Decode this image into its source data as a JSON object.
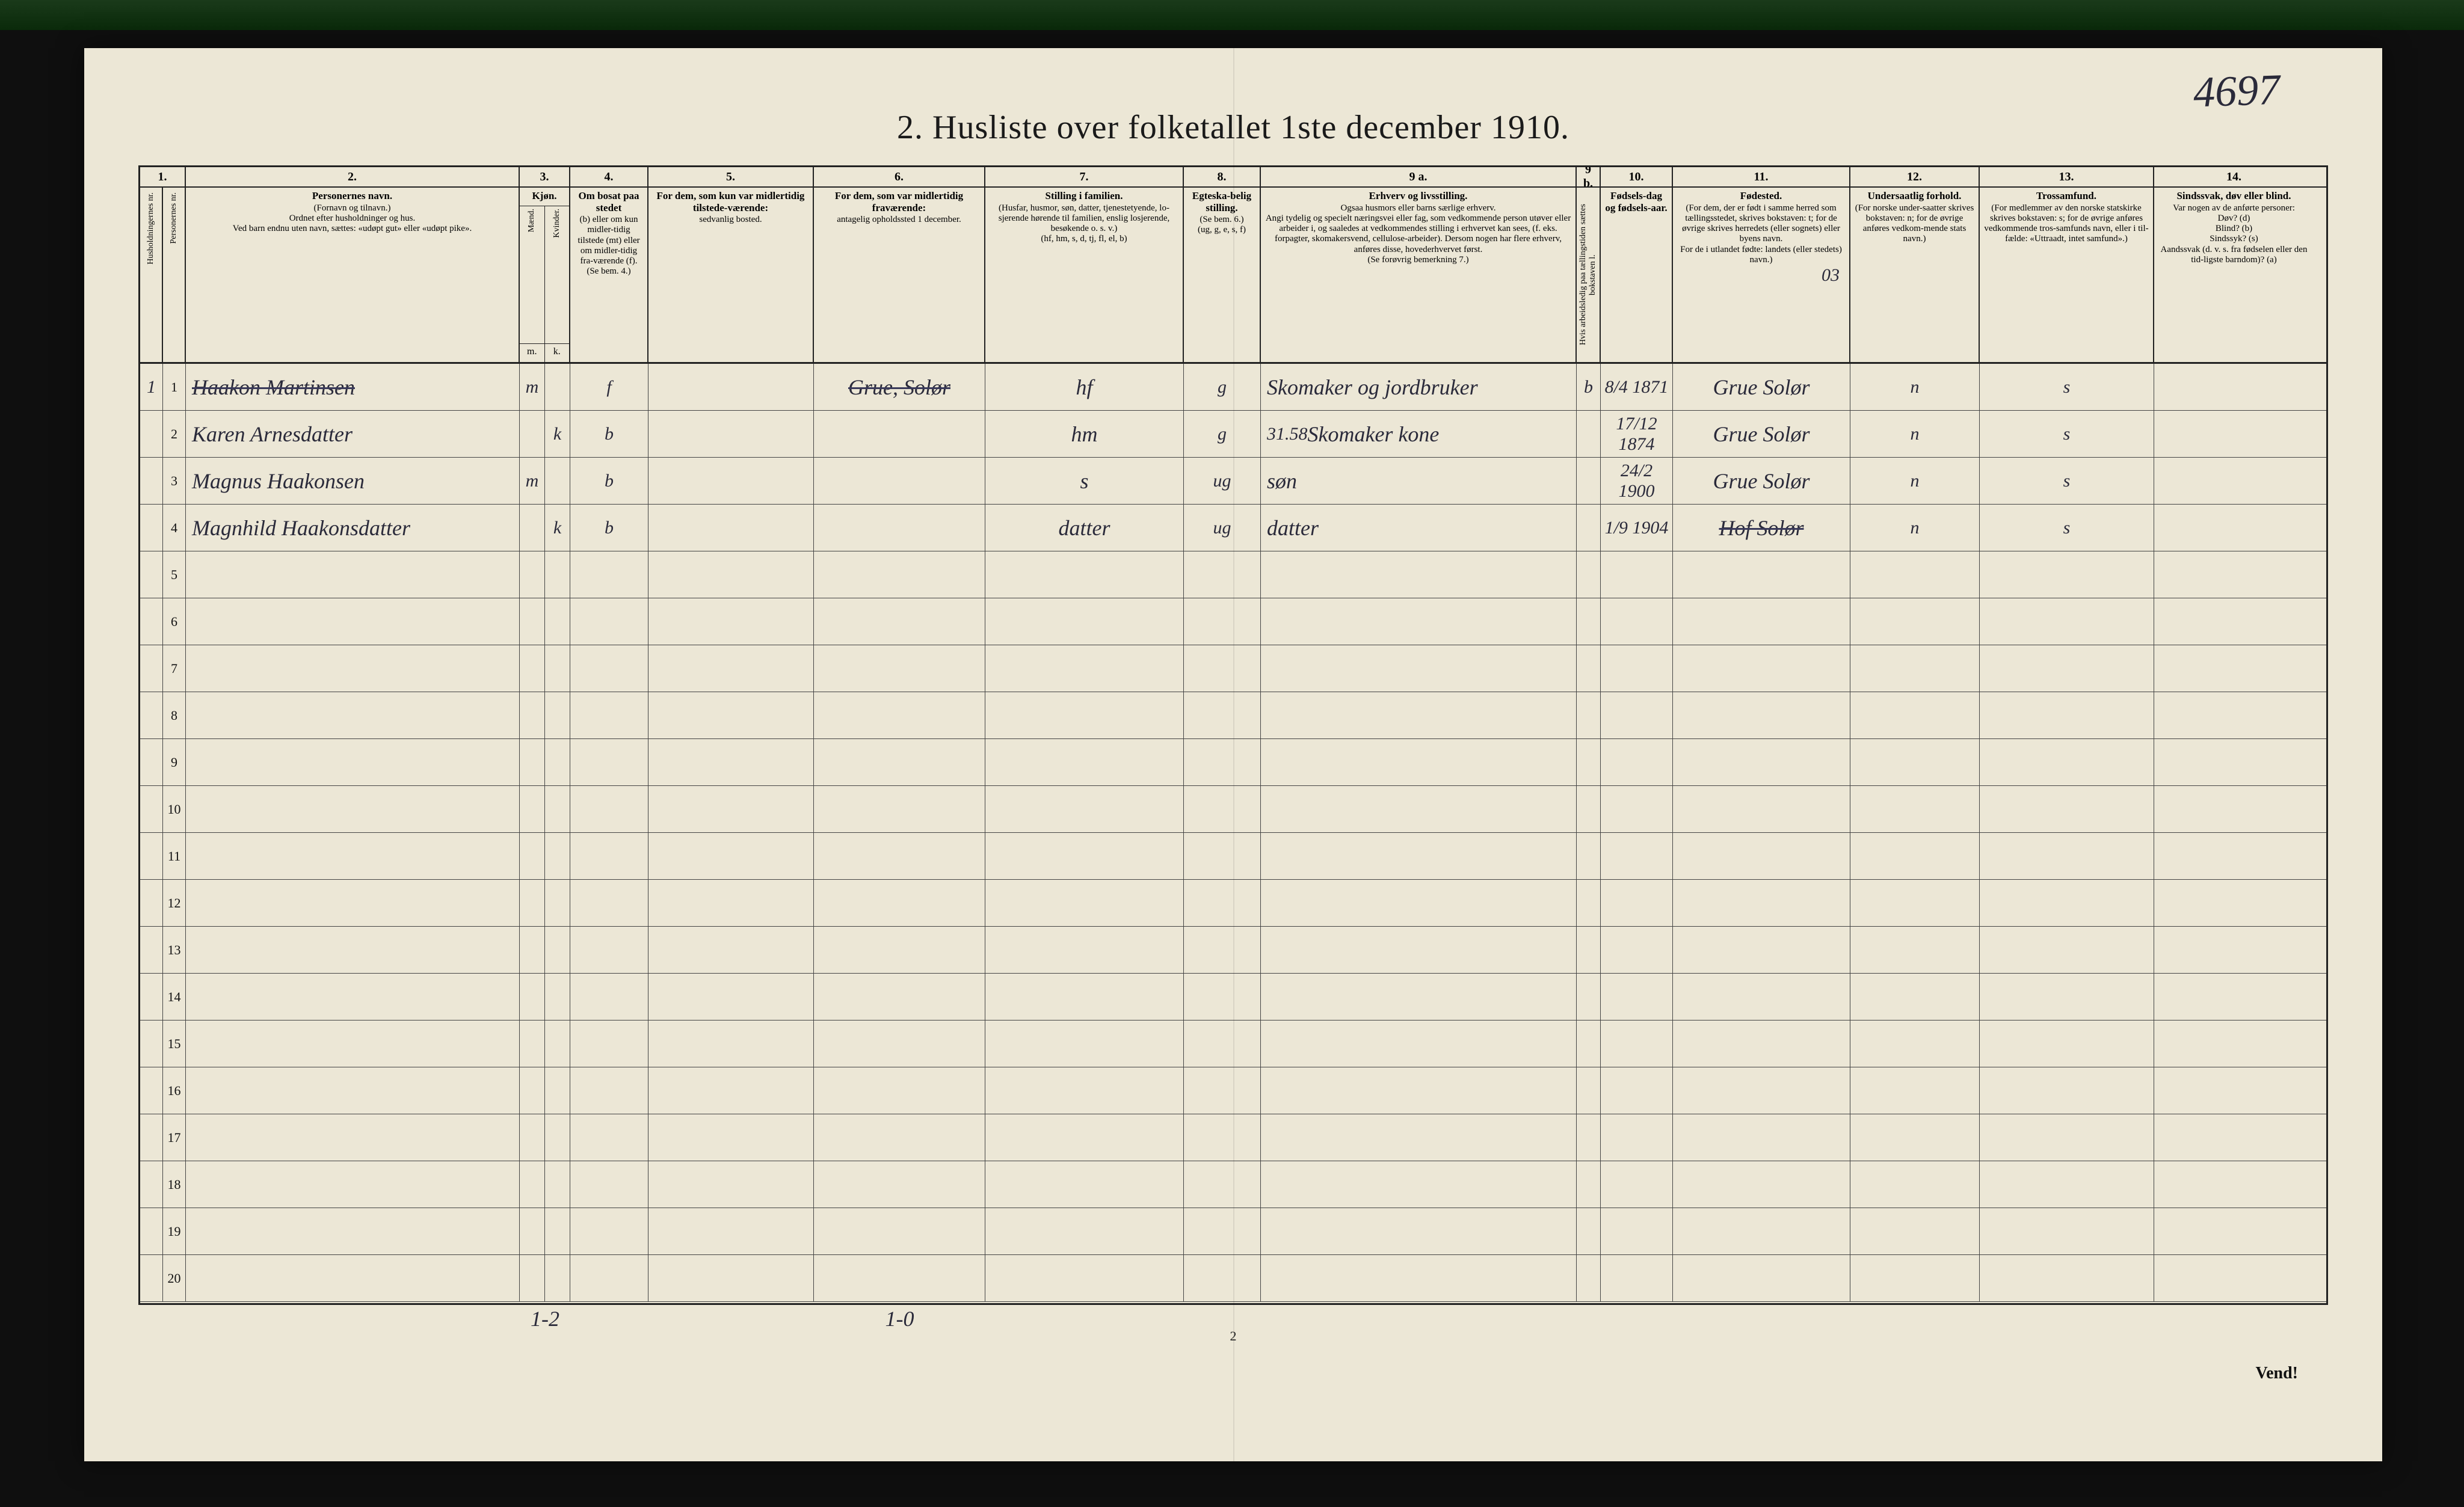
{
  "annotation_top_right": "4697",
  "title": "2.  Husliste over folketallet 1ste december 1910.",
  "page_number_bottom": "2",
  "vend_label": "Vend!",
  "columns": {
    "n1": "1.",
    "n2": "2.",
    "n3": "3.",
    "n4": "4.",
    "n5": "5.",
    "n6": "6.",
    "n7": "7.",
    "n8": "8.",
    "n9a": "9 a.",
    "n9b": "9 b.",
    "n10": "10.",
    "n11": "11.",
    "n12": "12.",
    "n13": "13.",
    "n14": "14."
  },
  "headers": {
    "c1a": "Husholdningernes nr.",
    "c1b": "Personernes nr.",
    "c2_title": "Personernes navn.",
    "c2_sub": "(Fornavn og tilnavn.)\nOrdnet efter husholdninger og hus.\nVed barn endnu uten navn, sættes: «udøpt gut» eller «udøpt pike».",
    "c3_title": "Kjøn.",
    "c3_m": "Mænd.",
    "c3_k": "Kvinder.",
    "c3_mk_m": "m.",
    "c3_mk_k": "k.",
    "c4_title": "Om bosat paa stedet",
    "c4_sub": "(b) eller om kun midler-tidig tilstede (mt) eller om midler-tidig fra-værende (f).\n(Se bem. 4.)",
    "c5_title": "For dem, som kun var midlertidig tilstede-værende:",
    "c5_sub": "sedvanlig bosted.",
    "c6_title": "For dem, som var midlertidig fraværende:",
    "c6_sub": "antagelig opholdssted 1 december.",
    "c7_title": "Stilling i familien.",
    "c7_sub": "(Husfar, husmor, søn, datter, tjenestetyende, lo-sjerende hørende til familien, enslig losjerende, besøkende o. s. v.)\n(hf, hm, s, d, tj, fl, el, b)",
    "c8_title": "Egteska-belig stilling.",
    "c8_sub": "(Se bem. 6.)\n(ug, g, e, s, f)",
    "c9a_title": "Erhverv og livsstilling.",
    "c9a_sub": "Ogsaa husmors eller barns særlige erhverv.\nAngi tydelig og specielt næringsvei eller fag, som vedkommende person utøver eller arbeider i, og saaledes at vedkommendes stilling i erhvervet kan sees, (f. eks. forpagter, skomakersvend, cellulose-arbeider). Dersom nogen har flere erhverv, anføres disse, hovederhvervet først.\n(Se forøvrig bemerkning 7.)",
    "c9b": "Hvis arbeidsledig paa tællingstiden sættes bokstaven l.",
    "c10_title": "Fødsels-dag og fødsels-aar.",
    "c11_title": "Fødested.",
    "c11_sub": "(For dem, der er født i samme herred som tællingsstedet, skrives bokstaven: t; for de øvrige skrives herredets (eller sognets) eller byens navn.\nFor de i utlandet fødte: landets (eller stedets) navn.)",
    "c12_title": "Undersaatlig forhold.",
    "c12_sub": "(For norske under-saatter skrives bokstaven: n; for de øvrige anføres vedkom-mende stats navn.)",
    "c13_title": "Trossamfund.",
    "c13_sub": "(For medlemmer av den norske statskirke skrives bokstaven: s; for de øvrige anføres vedkommende tros-samfunds navn, eller i til-fælde: «Uttraadt, intet samfund».)",
    "c14_title": "Sindssvak, døv eller blind.",
    "c14_sub": "Var nogen av de anførte personer:\nDøv?        (d)\nBlind?       (b)\nSindssyk?  (s)\nAandssvak (d. v. s. fra fødselen eller den tid-ligste barndom)?  (a)"
  },
  "header_note_03": "03",
  "rows": [
    {
      "num": "1",
      "name": "Haakon Martinsen",
      "name_struck": true,
      "sex_m": "m",
      "sex_k": "",
      "c4": "f",
      "c5": "",
      "c6": "Grue, Solør",
      "c6_struck": true,
      "c7": "hf",
      "c8": "g",
      "c9a": "Skomaker og jordbruker",
      "c9b": "b",
      "c10": "8/4 1871",
      "c11": "Grue Solør",
      "c12": "n",
      "c13": "s",
      "c14": ""
    },
    {
      "num": "2",
      "name": "Karen Arnesdatter",
      "sex_m": "",
      "sex_k": "k",
      "c4": "b",
      "c5": "",
      "c6": "",
      "c7": "hm",
      "c8": "g",
      "c9a_pre": "31.58",
      "c9a": "Skomaker kone",
      "c9b": "",
      "c10": "17/12 1874",
      "c11": "Grue Solør",
      "c12": "n",
      "c13": "s",
      "c14": ""
    },
    {
      "num": "3",
      "name": "Magnus Haakonsen",
      "sex_m": "m",
      "sex_k": "",
      "c4": "b",
      "c5": "",
      "c6": "",
      "c7": "s",
      "c8": "ug",
      "c9a": "søn",
      "c9b": "",
      "c10": "24/2 1900",
      "c11": "Grue Solør",
      "c12": "n",
      "c13": "s",
      "c14": ""
    },
    {
      "num": "4",
      "name": "Magnhild Haakonsdatter",
      "sex_m": "",
      "sex_k": "k",
      "c4": "b",
      "c5": "",
      "c6": "",
      "c7": "datter",
      "c8": "ug",
      "c9a": "datter",
      "c9b": "",
      "c10": "1/9 1904",
      "c11": "Hof Solør",
      "c11_struck": true,
      "c12": "n",
      "c13": "s",
      "c14": ""
    },
    {
      "num": "5"
    },
    {
      "num": "6"
    },
    {
      "num": "7"
    },
    {
      "num": "8"
    },
    {
      "num": "9"
    },
    {
      "num": "10"
    },
    {
      "num": "11"
    },
    {
      "num": "12"
    },
    {
      "num": "13"
    },
    {
      "num": "14"
    },
    {
      "num": "15"
    },
    {
      "num": "16"
    },
    {
      "num": "17"
    },
    {
      "num": "18"
    },
    {
      "num": "19"
    },
    {
      "num": "20"
    }
  ],
  "tally": {
    "sex": "1-2",
    "c6": "1-0"
  },
  "colors": {
    "paper": "#ece7d6",
    "ink": "#1a1a1a",
    "pen": "#2a2a3a",
    "frame": "#0f0f0f"
  }
}
